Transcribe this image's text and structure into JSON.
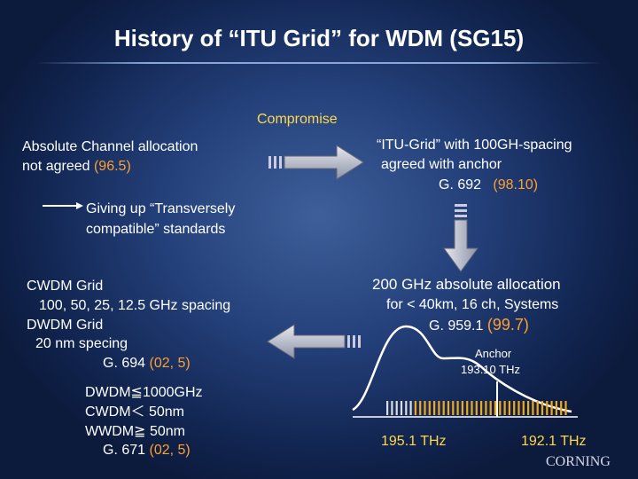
{
  "title": "History of “ITU Grid” for WDM (SG15)",
  "compromise": "Compromise",
  "left_note": {
    "line1": "Absolute Channel allocation",
    "line2": "not agreed",
    "ref": "(96.5)"
  },
  "right_note": {
    "line1": "“ITU-Grid” with 100GH-spacing",
    "line2": "agreed with anchor",
    "rec": "G. 692",
    "ref": "(98.10)"
  },
  "giving_up": {
    "line1": "Giving up “Transversely",
    "line2": "compatible” standards"
  },
  "cwdm_block": {
    "line1": "CWDM Grid",
    "line2": "100, 50, 25, 12.5 GHz spacing",
    "line3": "DWDM Grid",
    "line4": "20 nm specing",
    "rec": "G. 694",
    "ref": "(02, 5)"
  },
  "wdm_block": {
    "line1": "DWDM≦1000GHz",
    "line2": "CWDM＜ 50nm",
    "line3": "WWDM≧ 50nm",
    "rec": "G. 671",
    "ref": "(02, 5)"
  },
  "allocation": {
    "line1": "200 GHz absolute allocation",
    "line2": "for < 40km, 16 ch, Systems",
    "rec": "G. 959.1",
    "ref": "(99.7)"
  },
  "spectrum": {
    "anchor": "Anchor",
    "anchor_freq": "193.10 THz",
    "left_freq": "195.1 THz",
    "right_freq": "192.1 THz"
  },
  "logo": "CORNING"
}
